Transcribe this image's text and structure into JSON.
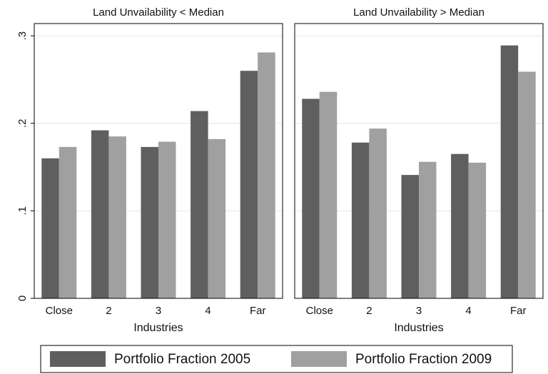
{
  "chart_data": [
    {
      "type": "bar",
      "title": "Land Unvailability < Median",
      "xlabel": "Industries",
      "categories": [
        "Close",
        "2",
        "3",
        "4",
        "Far"
      ],
      "series": [
        {
          "name": "Portfolio Fraction 2005",
          "color": "#5f5f5f",
          "values": [
            0.16,
            0.192,
            0.173,
            0.214,
            0.26
          ]
        },
        {
          "name": "Portfolio Fraction 2009",
          "color": "#a0a0a0",
          "values": [
            0.173,
            0.185,
            0.179,
            0.182,
            0.281
          ]
        }
      ],
      "ylim": [
        0,
        0.314
      ],
      "yticks": [
        0,
        {
          "value": 0.1,
          "label": ".1"
        },
        {
          "value": 0.2,
          "label": ".2"
        },
        {
          "value": 0.3,
          "label": ".3"
        }
      ],
      "grid": true
    },
    {
      "type": "bar",
      "title": "Land Unvailability > Median",
      "xlabel": "Industries",
      "categories": [
        "Close",
        "2",
        "3",
        "4",
        "Far"
      ],
      "series": [
        {
          "name": "Portfolio Fraction 2005",
          "color": "#5f5f5f",
          "values": [
            0.228,
            0.178,
            0.141,
            0.165,
            0.289
          ]
        },
        {
          "name": "Portfolio Fraction 2009",
          "color": "#a0a0a0",
          "values": [
            0.236,
            0.194,
            0.156,
            0.155,
            0.259
          ]
        }
      ],
      "ylim": [
        0,
        0.314
      ],
      "yticks": [
        0,
        0.1,
        0.2,
        0.3
      ],
      "grid": true
    }
  ]
}
